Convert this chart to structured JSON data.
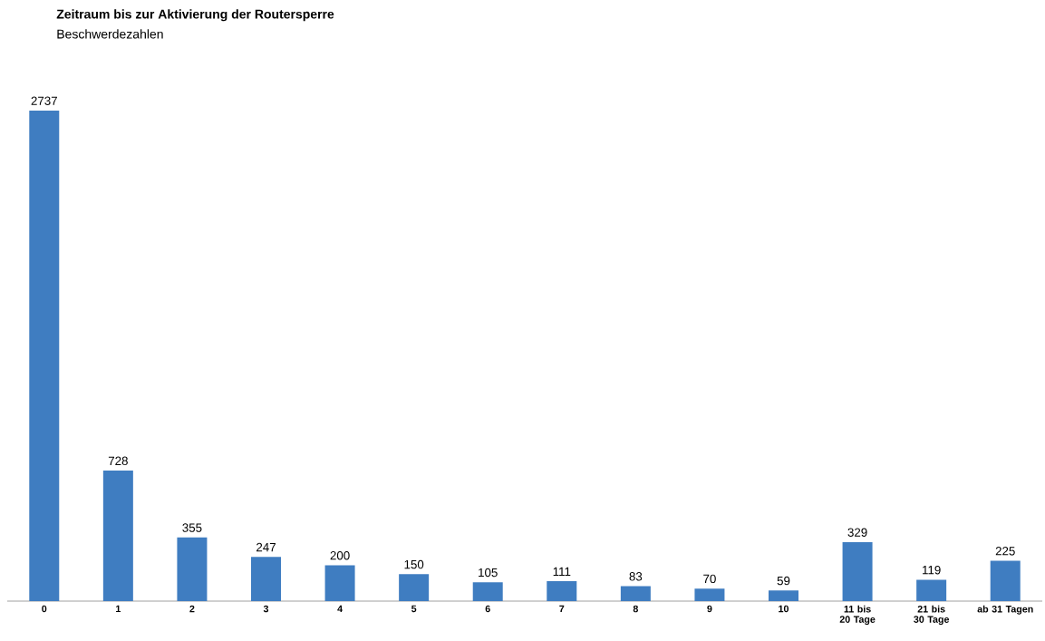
{
  "chart_data": {
    "type": "bar",
    "title": "Zeitraum  bis zur Aktivierung der Routersperre",
    "subtitle": "Beschwerdezahlen",
    "categories": [
      "0",
      "1",
      "2",
      "3",
      "4",
      "5",
      "6",
      "7",
      "8",
      "9",
      "10",
      "11 bis 20 Tage",
      "21 bis 30 Tage",
      "ab 31 Tagen"
    ],
    "values": [
      2737,
      728,
      355,
      247,
      200,
      150,
      105,
      111,
      83,
      70,
      59,
      329,
      119,
      225
    ],
    "color": "#3f7dc1",
    "data_labels": true
  }
}
